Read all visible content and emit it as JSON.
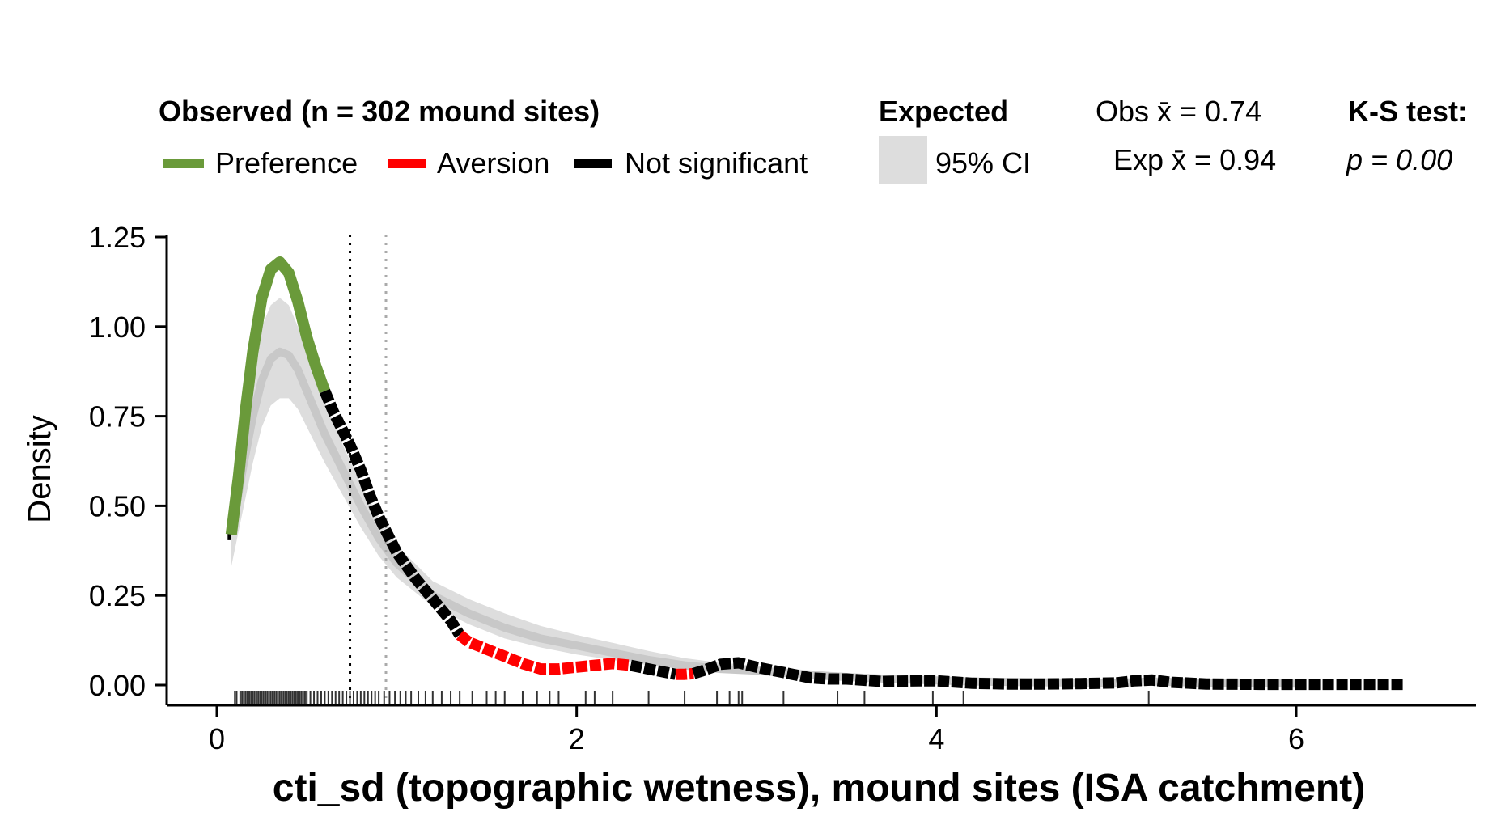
{
  "chart_data": {
    "type": "line",
    "title": "",
    "xlabel": "cti_sd (topographic wetness), mound sites (ISA catchment)",
    "ylabel": "Density",
    "xlim": [
      -0.3,
      7.0
    ],
    "ylim": [
      -0.05,
      1.25
    ],
    "x_ticks": [
      0,
      2,
      4,
      6
    ],
    "y_ticks": [
      0.0,
      0.25,
      0.5,
      0.75,
      1.0,
      1.25
    ],
    "x_tick_labels": [
      "0",
      "2",
      "4",
      "6"
    ],
    "y_tick_labels": [
      "0.00",
      "0.25",
      "0.50",
      "0.75",
      "1.00",
      "1.25"
    ],
    "grid": false,
    "legend": {
      "observed_title": "Observed (n = 302 mound sites)",
      "items": [
        {
          "label": "Preference",
          "color": "#6a9a3a"
        },
        {
          "label": "Aversion",
          "color": "#ff0000"
        },
        {
          "label": "Not significant",
          "color": "#000000"
        }
      ],
      "expected_title": "Expected",
      "ci_label": "95% CI",
      "ci_color": "#dddddd",
      "obs_mean_label": "Obs x̄ = 0.74",
      "exp_mean_label": "Exp x̄ = 0.94",
      "ks_title": "K-S test:",
      "ks_p_label": "p = 0.00"
    },
    "means": {
      "observed": 0.74,
      "expected": 0.94
    },
    "observed_density": {
      "x": [
        0.08,
        0.12,
        0.16,
        0.2,
        0.25,
        0.3,
        0.35,
        0.4,
        0.45,
        0.5,
        0.55,
        0.6,
        0.65,
        0.7,
        0.74,
        0.8,
        0.85,
        0.9,
        0.95,
        1.0,
        1.1,
        1.2,
        1.3,
        1.35,
        1.4,
        1.5,
        1.6,
        1.7,
        1.8,
        1.9,
        2.0,
        2.1,
        2.2,
        2.3,
        2.4,
        2.5,
        2.55,
        2.6,
        2.65,
        2.7,
        2.8,
        2.9,
        3.0,
        3.1,
        3.2,
        3.3,
        3.4,
        3.5,
        3.7,
        3.9,
        4.0,
        4.2,
        4.4,
        4.6,
        4.8,
        5.0,
        5.1,
        5.2,
        5.3,
        5.5,
        5.8,
        6.2,
        6.6
      ],
      "y": [
        0.42,
        0.58,
        0.77,
        0.93,
        1.08,
        1.16,
        1.18,
        1.15,
        1.07,
        0.97,
        0.89,
        0.82,
        0.76,
        0.71,
        0.67,
        0.6,
        0.53,
        0.47,
        0.42,
        0.37,
        0.3,
        0.24,
        0.18,
        0.14,
        0.12,
        0.1,
        0.08,
        0.06,
        0.045,
        0.045,
        0.05,
        0.055,
        0.06,
        0.055,
        0.045,
        0.035,
        0.03,
        0.03,
        0.032,
        0.04,
        0.058,
        0.062,
        0.05,
        0.04,
        0.03,
        0.02,
        0.017,
        0.017,
        0.01,
        0.012,
        0.012,
        0.005,
        0.003,
        0.003,
        0.004,
        0.006,
        0.012,
        0.014,
        0.008,
        0.003,
        0.002,
        0.002,
        0.002
      ],
      "segments": [
        {
          "from": 0.06,
          "to": 0.08,
          "status": "Not significant"
        },
        {
          "from": 0.08,
          "to": 0.6,
          "status": "Preference"
        },
        {
          "from": 0.6,
          "to": 1.35,
          "status": "Not significant"
        },
        {
          "from": 1.35,
          "to": 2.3,
          "status": "Aversion"
        },
        {
          "from": 2.3,
          "to": 2.55,
          "status": "Not significant"
        },
        {
          "from": 2.55,
          "to": 2.65,
          "status": "Aversion"
        },
        {
          "from": 2.65,
          "to": 6.6,
          "status": "Not significant"
        }
      ]
    },
    "expected_density": {
      "x": [
        0.08,
        0.15,
        0.2,
        0.25,
        0.3,
        0.35,
        0.4,
        0.45,
        0.5,
        0.55,
        0.6,
        0.7,
        0.8,
        0.9,
        1.0,
        1.2,
        1.4,
        1.6,
        1.8,
        2.0,
        2.2,
        2.4,
        2.6,
        2.8,
        3.0,
        3.2,
        3.4,
        3.6,
        3.8,
        4.0,
        4.2,
        4.5,
        5.0,
        5.2,
        5.5,
        6.0
      ],
      "mean": [
        0.42,
        0.62,
        0.75,
        0.85,
        0.91,
        0.93,
        0.92,
        0.88,
        0.82,
        0.76,
        0.7,
        0.6,
        0.5,
        0.41,
        0.34,
        0.25,
        0.2,
        0.16,
        0.13,
        0.11,
        0.09,
        0.07,
        0.055,
        0.045,
        0.04,
        0.032,
        0.025,
        0.02,
        0.016,
        0.013,
        0.01,
        0.008,
        0.006,
        0.01,
        0.006,
        0.004
      ],
      "lower": [
        0.33,
        0.5,
        0.62,
        0.72,
        0.78,
        0.8,
        0.8,
        0.77,
        0.72,
        0.67,
        0.62,
        0.53,
        0.44,
        0.36,
        0.3,
        0.22,
        0.17,
        0.13,
        0.105,
        0.085,
        0.07,
        0.055,
        0.043,
        0.034,
        0.03,
        0.024,
        0.018,
        0.014,
        0.011,
        0.009,
        0.006,
        0.004,
        0.003,
        0.005,
        0.003,
        0.002
      ],
      "upper": [
        0.5,
        0.75,
        0.9,
        1.0,
        1.06,
        1.08,
        1.06,
        1.0,
        0.93,
        0.86,
        0.79,
        0.67,
        0.56,
        0.47,
        0.39,
        0.29,
        0.24,
        0.2,
        0.165,
        0.14,
        0.118,
        0.095,
        0.075,
        0.062,
        0.055,
        0.045,
        0.037,
        0.03,
        0.024,
        0.02,
        0.016,
        0.012,
        0.009,
        0.014,
        0.009,
        0.006
      ]
    },
    "rug": [
      0.1,
      0.11,
      0.13,
      0.14,
      0.15,
      0.16,
      0.17,
      0.18,
      0.19,
      0.2,
      0.21,
      0.22,
      0.23,
      0.24,
      0.25,
      0.26,
      0.27,
      0.28,
      0.29,
      0.3,
      0.31,
      0.32,
      0.33,
      0.34,
      0.35,
      0.36,
      0.37,
      0.38,
      0.39,
      0.4,
      0.41,
      0.42,
      0.43,
      0.44,
      0.45,
      0.46,
      0.47,
      0.48,
      0.49,
      0.5,
      0.52,
      0.54,
      0.56,
      0.58,
      0.6,
      0.62,
      0.64,
      0.66,
      0.68,
      0.7,
      0.72,
      0.74,
      0.76,
      0.78,
      0.8,
      0.82,
      0.84,
      0.86,
      0.88,
      0.9,
      0.93,
      0.96,
      0.99,
      1.02,
      1.05,
      1.08,
      1.12,
      1.16,
      1.2,
      1.25,
      1.3,
      1.35,
      1.42,
      1.5,
      1.55,
      1.6,
      1.7,
      1.78,
      1.85,
      1.9,
      2.05,
      2.1,
      2.2,
      2.4,
      2.6,
      2.78,
      2.85,
      2.9,
      2.92,
      3.15,
      3.45,
      3.6,
      3.98,
      4.15,
      5.18
    ]
  }
}
